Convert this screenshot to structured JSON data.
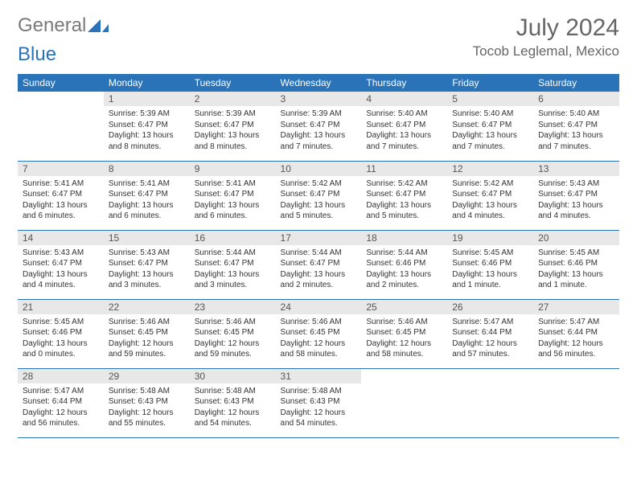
{
  "logo": {
    "text1": "General",
    "text2": "Blue"
  },
  "title": "July 2024",
  "location": "Tocob Leglemal, Mexico",
  "colors": {
    "header_bg": "#2a73b8",
    "header_text": "#ffffff",
    "daynum_bg": "#e8e8e8",
    "border": "#2a73b8",
    "logo_gray": "#7a7a7a",
    "logo_blue": "#2a73b8"
  },
  "day_headers": [
    "Sunday",
    "Monday",
    "Tuesday",
    "Wednesday",
    "Thursday",
    "Friday",
    "Saturday"
  ],
  "weeks": [
    [
      {
        "num": "",
        "sunrise": "",
        "sunset": "",
        "daylight": ""
      },
      {
        "num": "1",
        "sunrise": "Sunrise: 5:39 AM",
        "sunset": "Sunset: 6:47 PM",
        "daylight": "Daylight: 13 hours and 8 minutes."
      },
      {
        "num": "2",
        "sunrise": "Sunrise: 5:39 AM",
        "sunset": "Sunset: 6:47 PM",
        "daylight": "Daylight: 13 hours and 8 minutes."
      },
      {
        "num": "3",
        "sunrise": "Sunrise: 5:39 AM",
        "sunset": "Sunset: 6:47 PM",
        "daylight": "Daylight: 13 hours and 7 minutes."
      },
      {
        "num": "4",
        "sunrise": "Sunrise: 5:40 AM",
        "sunset": "Sunset: 6:47 PM",
        "daylight": "Daylight: 13 hours and 7 minutes."
      },
      {
        "num": "5",
        "sunrise": "Sunrise: 5:40 AM",
        "sunset": "Sunset: 6:47 PM",
        "daylight": "Daylight: 13 hours and 7 minutes."
      },
      {
        "num": "6",
        "sunrise": "Sunrise: 5:40 AM",
        "sunset": "Sunset: 6:47 PM",
        "daylight": "Daylight: 13 hours and 7 minutes."
      }
    ],
    [
      {
        "num": "7",
        "sunrise": "Sunrise: 5:41 AM",
        "sunset": "Sunset: 6:47 PM",
        "daylight": "Daylight: 13 hours and 6 minutes."
      },
      {
        "num": "8",
        "sunrise": "Sunrise: 5:41 AM",
        "sunset": "Sunset: 6:47 PM",
        "daylight": "Daylight: 13 hours and 6 minutes."
      },
      {
        "num": "9",
        "sunrise": "Sunrise: 5:41 AM",
        "sunset": "Sunset: 6:47 PM",
        "daylight": "Daylight: 13 hours and 6 minutes."
      },
      {
        "num": "10",
        "sunrise": "Sunrise: 5:42 AM",
        "sunset": "Sunset: 6:47 PM",
        "daylight": "Daylight: 13 hours and 5 minutes."
      },
      {
        "num": "11",
        "sunrise": "Sunrise: 5:42 AM",
        "sunset": "Sunset: 6:47 PM",
        "daylight": "Daylight: 13 hours and 5 minutes."
      },
      {
        "num": "12",
        "sunrise": "Sunrise: 5:42 AM",
        "sunset": "Sunset: 6:47 PM",
        "daylight": "Daylight: 13 hours and 4 minutes."
      },
      {
        "num": "13",
        "sunrise": "Sunrise: 5:43 AM",
        "sunset": "Sunset: 6:47 PM",
        "daylight": "Daylight: 13 hours and 4 minutes."
      }
    ],
    [
      {
        "num": "14",
        "sunrise": "Sunrise: 5:43 AM",
        "sunset": "Sunset: 6:47 PM",
        "daylight": "Daylight: 13 hours and 4 minutes."
      },
      {
        "num": "15",
        "sunrise": "Sunrise: 5:43 AM",
        "sunset": "Sunset: 6:47 PM",
        "daylight": "Daylight: 13 hours and 3 minutes."
      },
      {
        "num": "16",
        "sunrise": "Sunrise: 5:44 AM",
        "sunset": "Sunset: 6:47 PM",
        "daylight": "Daylight: 13 hours and 3 minutes."
      },
      {
        "num": "17",
        "sunrise": "Sunrise: 5:44 AM",
        "sunset": "Sunset: 6:47 PM",
        "daylight": "Daylight: 13 hours and 2 minutes."
      },
      {
        "num": "18",
        "sunrise": "Sunrise: 5:44 AM",
        "sunset": "Sunset: 6:46 PM",
        "daylight": "Daylight: 13 hours and 2 minutes."
      },
      {
        "num": "19",
        "sunrise": "Sunrise: 5:45 AM",
        "sunset": "Sunset: 6:46 PM",
        "daylight": "Daylight: 13 hours and 1 minute."
      },
      {
        "num": "20",
        "sunrise": "Sunrise: 5:45 AM",
        "sunset": "Sunset: 6:46 PM",
        "daylight": "Daylight: 13 hours and 1 minute."
      }
    ],
    [
      {
        "num": "21",
        "sunrise": "Sunrise: 5:45 AM",
        "sunset": "Sunset: 6:46 PM",
        "daylight": "Daylight: 13 hours and 0 minutes."
      },
      {
        "num": "22",
        "sunrise": "Sunrise: 5:46 AM",
        "sunset": "Sunset: 6:45 PM",
        "daylight": "Daylight: 12 hours and 59 minutes."
      },
      {
        "num": "23",
        "sunrise": "Sunrise: 5:46 AM",
        "sunset": "Sunset: 6:45 PM",
        "daylight": "Daylight: 12 hours and 59 minutes."
      },
      {
        "num": "24",
        "sunrise": "Sunrise: 5:46 AM",
        "sunset": "Sunset: 6:45 PM",
        "daylight": "Daylight: 12 hours and 58 minutes."
      },
      {
        "num": "25",
        "sunrise": "Sunrise: 5:46 AM",
        "sunset": "Sunset: 6:45 PM",
        "daylight": "Daylight: 12 hours and 58 minutes."
      },
      {
        "num": "26",
        "sunrise": "Sunrise: 5:47 AM",
        "sunset": "Sunset: 6:44 PM",
        "daylight": "Daylight: 12 hours and 57 minutes."
      },
      {
        "num": "27",
        "sunrise": "Sunrise: 5:47 AM",
        "sunset": "Sunset: 6:44 PM",
        "daylight": "Daylight: 12 hours and 56 minutes."
      }
    ],
    [
      {
        "num": "28",
        "sunrise": "Sunrise: 5:47 AM",
        "sunset": "Sunset: 6:44 PM",
        "daylight": "Daylight: 12 hours and 56 minutes."
      },
      {
        "num": "29",
        "sunrise": "Sunrise: 5:48 AM",
        "sunset": "Sunset: 6:43 PM",
        "daylight": "Daylight: 12 hours and 55 minutes."
      },
      {
        "num": "30",
        "sunrise": "Sunrise: 5:48 AM",
        "sunset": "Sunset: 6:43 PM",
        "daylight": "Daylight: 12 hours and 54 minutes."
      },
      {
        "num": "31",
        "sunrise": "Sunrise: 5:48 AM",
        "sunset": "Sunset: 6:43 PM",
        "daylight": "Daylight: 12 hours and 54 minutes."
      },
      {
        "num": "",
        "sunrise": "",
        "sunset": "",
        "daylight": ""
      },
      {
        "num": "",
        "sunrise": "",
        "sunset": "",
        "daylight": ""
      },
      {
        "num": "",
        "sunrise": "",
        "sunset": "",
        "daylight": ""
      }
    ]
  ]
}
